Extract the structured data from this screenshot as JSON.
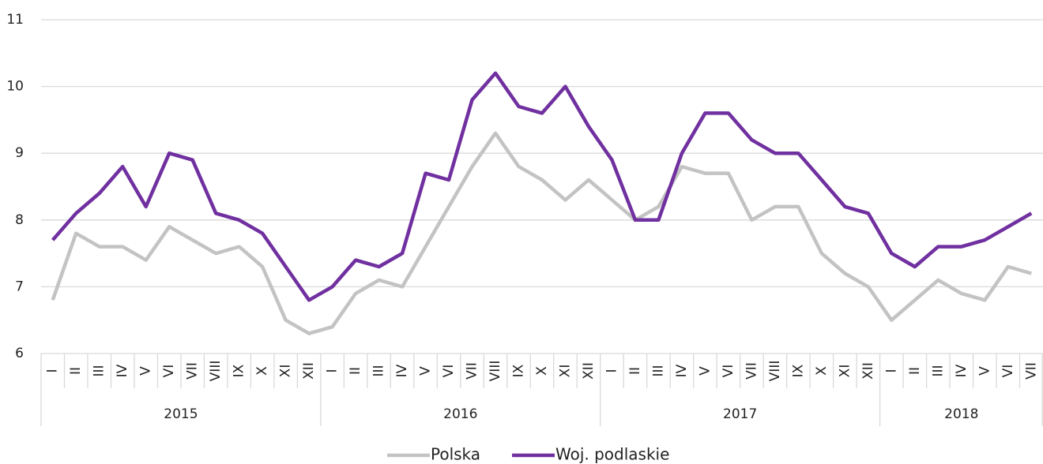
{
  "chart_data": {
    "type": "line",
    "categories": [
      "I",
      "II",
      "III",
      "IV",
      "V",
      "VI",
      "VII",
      "VIII",
      "IX",
      "X",
      "XI",
      "XII",
      "I",
      "II",
      "III",
      "IV",
      "V",
      "VI",
      "VII",
      "VIII",
      "IX",
      "X",
      "XI",
      "XII",
      "I",
      "II",
      "III",
      "IV",
      "V",
      "VI",
      "VII",
      "VIII",
      "IX",
      "X",
      "XI",
      "XII",
      "I",
      "II",
      "III",
      "IV",
      "V",
      "VI",
      "VII"
    ],
    "years": [
      "2015",
      "2016",
      "2017",
      "2018"
    ],
    "series": [
      {
        "name": "Polska",
        "color": "#c3c3c3",
        "values": [
          6.8,
          7.8,
          7.6,
          7.6,
          7.4,
          7.9,
          7.7,
          7.5,
          7.6,
          7.3,
          6.5,
          6.3,
          6.4,
          6.9,
          7.1,
          7.0,
          7.6,
          8.2,
          8.8,
          9.3,
          8.8,
          8.6,
          8.3,
          8.6,
          8.3,
          8.0,
          8.2,
          8.8,
          8.7,
          8.7,
          8.0,
          8.2,
          8.2,
          7.5,
          7.2,
          7.0,
          6.5,
          6.8,
          7.1,
          6.9,
          6.8,
          7.3,
          7.2
        ]
      },
      {
        "name": "Woj. podlaskie",
        "color": "#7030a0",
        "values": [
          7.7,
          8.1,
          8.4,
          8.8,
          8.2,
          9.0,
          8.9,
          8.1,
          8.0,
          7.8,
          7.3,
          6.8,
          7.0,
          7.4,
          7.3,
          7.5,
          8.7,
          8.6,
          9.8,
          10.2,
          9.7,
          9.6,
          10.0,
          9.4,
          8.9,
          8.0,
          8.0,
          9.0,
          9.6,
          9.6,
          9.2,
          9.0,
          9.0,
          8.6,
          8.2,
          8.1,
          7.5,
          7.3,
          7.6,
          7.6,
          7.7,
          7.9,
          8.1
        ]
      }
    ],
    "ylim": [
      6,
      11
    ],
    "yticks": [
      6,
      7,
      8,
      9,
      10,
      11
    ],
    "grid": true,
    "legend": "bottom"
  }
}
